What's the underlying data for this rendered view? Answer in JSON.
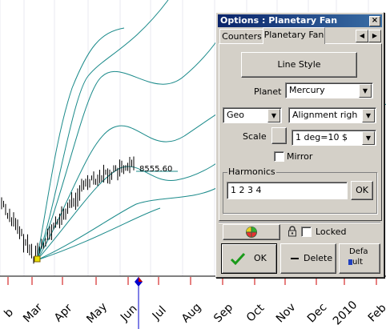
{
  "chart": {
    "price_label": "8555.60",
    "months": [
      "b",
      "Mar",
      "Apr",
      "May",
      "Jun",
      "Jul",
      "Aug",
      "Sep",
      "Oct",
      "Nov",
      "Dec",
      "2010",
      "Feb"
    ],
    "colors": {
      "fan": "#1a8a8a",
      "price": "#000000",
      "axis_red": "#cc0000",
      "grid": "#ccccdd",
      "marker": "#e8e000"
    }
  },
  "dialog": {
    "title": "Options : Planetary Fan",
    "close_glyph": "×",
    "tabs": [
      "Counters",
      "Planetary Fan"
    ],
    "line_style_label": "Line Style",
    "planet_label": "Planet",
    "planet_value": "Mercury",
    "geo_value": "Geo",
    "alignment_value": "Alignment righ",
    "scale_label": "Scale",
    "scale_value": "1 deg=10 $",
    "mirror_label": "Mirror",
    "harmonics_label": "Harmonics",
    "harmonics_value": "1 2 3 4",
    "harmonics_ok_label": "OK",
    "locked_label": "Locked",
    "ok_label": "OK",
    "delete_label": "Delete",
    "default_label_1": "Defa",
    "default_label_2": "ult"
  }
}
